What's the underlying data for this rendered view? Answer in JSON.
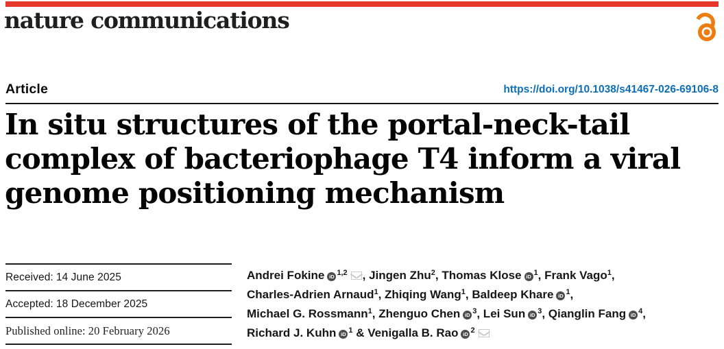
{
  "masthead": {
    "journal_name": "nature communications"
  },
  "article_header": {
    "article_type": "Article",
    "doi": "https://doi.org/10.1038/s41467-026-69106-8"
  },
  "title": {
    "lines": [
      "In situ structures of the portal-neck-tail",
      "complex of bacteriophage T4 inform a viral",
      "genome positioning mechanism"
    ]
  },
  "dates": {
    "rows": [
      {
        "label": "Received:",
        "value": "14 June 2025"
      },
      {
        "label": "Accepted:",
        "value": "18 December 2025"
      },
      {
        "label": "Published online:",
        "value": "20 February 2026"
      }
    ]
  },
  "authors": {
    "lines": [
      [
        {
          "t": "txt",
          "v": "Andrei Fokine"
        },
        {
          "t": "orcid"
        },
        {
          "t": "sup",
          "v": "1,2"
        },
        {
          "t": "mail"
        },
        {
          "t": "txt",
          "v": ", Jingen Zhu"
        },
        {
          "t": "sup",
          "v": "2"
        },
        {
          "t": "txt",
          "v": ", Thomas Klose"
        },
        {
          "t": "orcid"
        },
        {
          "t": "sup",
          "v": "1"
        },
        {
          "t": "txt",
          "v": ", Frank Vago"
        },
        {
          "t": "sup",
          "v": "1"
        },
        {
          "t": "txt",
          "v": ","
        }
      ],
      [
        {
          "t": "txt",
          "v": "Charles-Adrien Arnaud"
        },
        {
          "t": "sup",
          "v": "1"
        },
        {
          "t": "txt",
          "v": ", Zhiqing Wang"
        },
        {
          "t": "sup",
          "v": "1"
        },
        {
          "t": "txt",
          "v": ", Baldeep Khare"
        },
        {
          "t": "orcid"
        },
        {
          "t": "sup",
          "v": "1"
        },
        {
          "t": "txt",
          "v": ","
        }
      ],
      [
        {
          "t": "txt",
          "v": "Michael G. Rossmann"
        },
        {
          "t": "sup",
          "v": "1"
        },
        {
          "t": "txt",
          "v": ", Zhenguo Chen"
        },
        {
          "t": "orcid"
        },
        {
          "t": "sup",
          "v": "3"
        },
        {
          "t": "txt",
          "v": ", Lei Sun"
        },
        {
          "t": "orcid"
        },
        {
          "t": "sup",
          "v": "3"
        },
        {
          "t": "txt",
          "v": ", Qianglin Fang"
        },
        {
          "t": "orcid"
        },
        {
          "t": "sup",
          "v": "4"
        },
        {
          "t": "txt",
          "v": ","
        }
      ],
      [
        {
          "t": "txt",
          "v": "Richard J. Kuhn"
        },
        {
          "t": "orcid"
        },
        {
          "t": "sup",
          "v": "1"
        },
        {
          "t": "txt",
          "v": " & Venigalla B. Rao"
        },
        {
          "t": "orcid"
        },
        {
          "t": "sup",
          "v": "2"
        },
        {
          "t": "mail"
        }
      ]
    ]
  },
  "icons": {
    "orcid_icon_text": "iD"
  },
  "colors": {
    "brand_red": "#E8382C",
    "doi_blue": "#0D6EB5",
    "open_access_orange": "#EE7D11",
    "orcid_gray": "#4B4B4B",
    "mail_gray": "#C9C9C9",
    "rule_black": "#161616"
  }
}
